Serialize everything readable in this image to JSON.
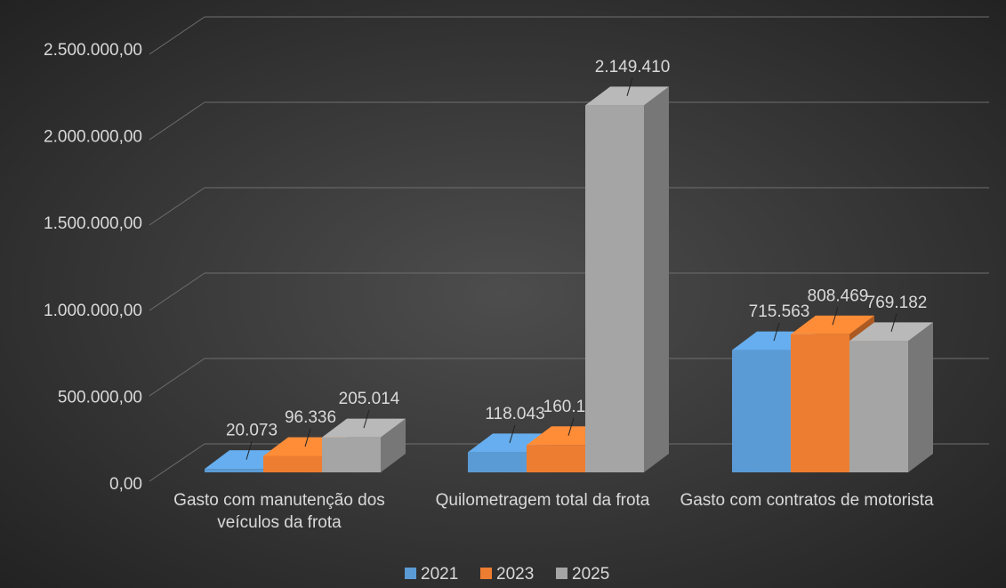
{
  "chart_data": {
    "type": "bar3d",
    "categories": [
      "Gasto com manutenção dos veículos da frota",
      "Quilometragem total da frota",
      "Gasto com contratos de motorista"
    ],
    "series": [
      {
        "name": "2021",
        "color": "#5b9bd5",
        "values": [
          20073,
          118043,
          715563
        ],
        "value_labels": [
          "20.073",
          "118.043",
          "715.563"
        ]
      },
      {
        "name": "2023",
        "color": "#ed7d31",
        "values": [
          96336,
          160150,
          808469
        ],
        "value_labels": [
          "96.336",
          "160.150",
          "808.469"
        ]
      },
      {
        "name": "2025",
        "color": "#a5a5a5",
        "values": [
          205014,
          2149410,
          769182
        ],
        "value_labels": [
          "205.014",
          "2.149.410",
          "769.182"
        ]
      }
    ],
    "ylim": [
      0,
      2500000
    ],
    "yticks": [
      {
        "value": 0,
        "label": "0,00"
      },
      {
        "value": 500000,
        "label": "500.000,00"
      },
      {
        "value": 1000000,
        "label": "1.000.000,00"
      },
      {
        "value": 1500000,
        "label": "1.500.000,00"
      },
      {
        "value": 2000000,
        "label": "2.000.000,00"
      },
      {
        "value": 2500000,
        "label": "2.500.000,00"
      }
    ],
    "grid": true,
    "legend": "bottom"
  }
}
